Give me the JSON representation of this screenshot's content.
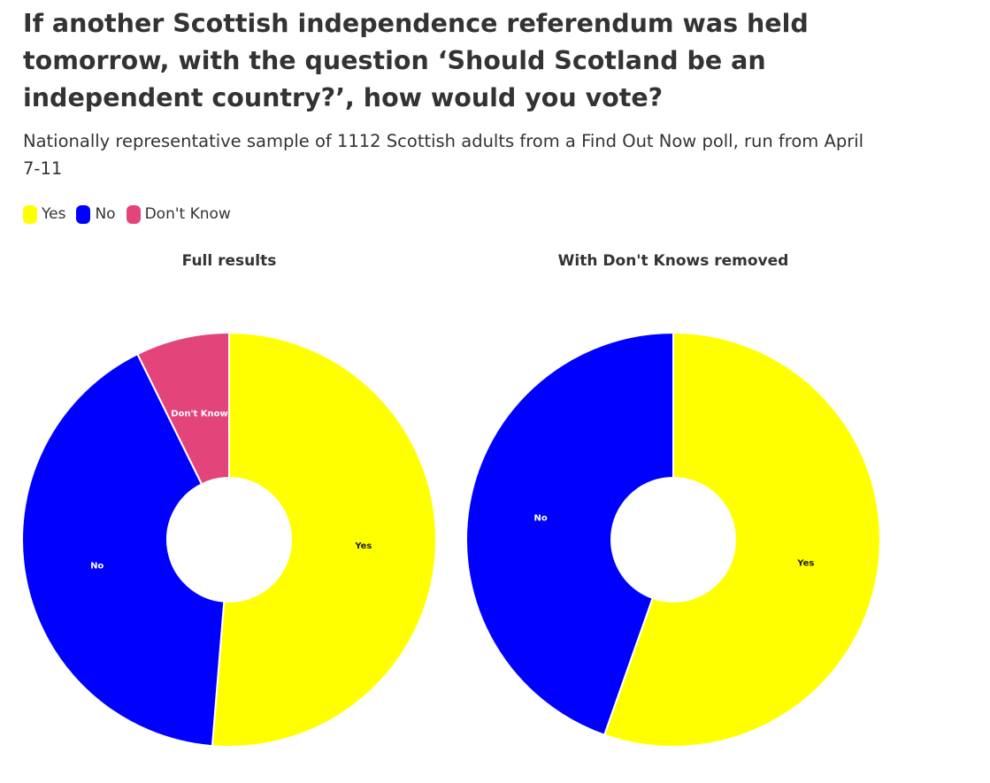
{
  "title": "If another Scottish independence referendum was held tomorrow, with the question ‘Should Scotland be an independent country?’, how would you vote?",
  "subtitle": "Nationally representative sample of 1112 Scottish adults from a Find Out Now poll, run from April 7-11",
  "legend": [
    {
      "label": "Yes",
      "color": "#ffff00"
    },
    {
      "label": "No",
      "color": "#0000ff"
    },
    {
      "label": "Don't Know",
      "color": "#e3457a"
    }
  ],
  "chart_data": [
    {
      "type": "pie",
      "variant": "donut",
      "title": "Full results",
      "categories": [
        "Yes",
        "No",
        "Don't Know"
      ],
      "values": [
        51.3,
        41.4,
        7.3
      ],
      "colors": [
        "#ffff00",
        "#0000ff",
        "#e3457a"
      ],
      "legend": "top-left"
    },
    {
      "type": "pie",
      "variant": "donut",
      "title": "With Don't Knows removed",
      "categories": [
        "Yes",
        "No"
      ],
      "values": [
        55.4,
        44.6
      ],
      "colors": [
        "#ffff00",
        "#0000ff"
      ],
      "legend": "top-left"
    }
  ]
}
